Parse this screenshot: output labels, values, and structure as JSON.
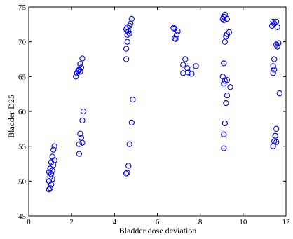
{
  "chart_data": {
    "type": "scatter",
    "xlabel": "Bladder dose deviation",
    "ylabel": "Bladder D25",
    "xlim": [
      0,
      12
    ],
    "ylim": [
      45,
      75
    ],
    "xticks": [
      0,
      2,
      4,
      6,
      8,
      10,
      12
    ],
    "yticks": [
      45,
      50,
      55,
      60,
      65,
      70,
      75
    ],
    "x_tick_labels": [
      "0",
      "2",
      "4",
      "6",
      "8",
      "10",
      "12"
    ],
    "y_tick_labels": [
      "45",
      "50",
      "55",
      "60",
      "65",
      "70",
      "75"
    ],
    "grid": false,
    "legend": "none",
    "marker": "circle-open",
    "color": "#0000ff",
    "series": [
      {
        "points": [
          {
            "x": 1.2,
            "y": 55.0
          },
          {
            "x": 1.15,
            "y": 54.5
          },
          {
            "x": 1.1,
            "y": 53.5
          },
          {
            "x": 1.2,
            "y": 53.0
          },
          {
            "x": 1.05,
            "y": 52.7
          },
          {
            "x": 1.15,
            "y": 52.3
          },
          {
            "x": 1.0,
            "y": 51.8
          },
          {
            "x": 1.1,
            "y": 51.5
          },
          {
            "x": 0.95,
            "y": 51.3
          },
          {
            "x": 1.05,
            "y": 51.0
          },
          {
            "x": 1.0,
            "y": 50.6
          },
          {
            "x": 1.1,
            "y": 50.3
          },
          {
            "x": 0.95,
            "y": 50.0
          },
          {
            "x": 1.05,
            "y": 49.5
          },
          {
            "x": 1.0,
            "y": 49.0
          },
          {
            "x": 0.95,
            "y": 48.8
          },
          {
            "x": 2.5,
            "y": 67.6
          },
          {
            "x": 2.4,
            "y": 66.8
          },
          {
            "x": 2.45,
            "y": 66.3
          },
          {
            "x": 2.35,
            "y": 66.0
          },
          {
            "x": 2.3,
            "y": 65.8
          },
          {
            "x": 2.25,
            "y": 65.5
          },
          {
            "x": 2.4,
            "y": 65.7
          },
          {
            "x": 2.35,
            "y": 65.9
          },
          {
            "x": 2.2,
            "y": 65.0
          },
          {
            "x": 2.55,
            "y": 60.0
          },
          {
            "x": 2.5,
            "y": 58.7
          },
          {
            "x": 2.4,
            "y": 56.8
          },
          {
            "x": 2.45,
            "y": 56.2
          },
          {
            "x": 2.5,
            "y": 55.5
          },
          {
            "x": 2.35,
            "y": 55.3
          },
          {
            "x": 2.35,
            "y": 53.9
          },
          {
            "x": 4.8,
            "y": 73.3
          },
          {
            "x": 4.75,
            "y": 72.6
          },
          {
            "x": 4.7,
            "y": 72.3
          },
          {
            "x": 4.6,
            "y": 72.1
          },
          {
            "x": 4.55,
            "y": 71.8
          },
          {
            "x": 4.65,
            "y": 71.5
          },
          {
            "x": 4.7,
            "y": 71.2
          },
          {
            "x": 4.6,
            "y": 71.0
          },
          {
            "x": 4.6,
            "y": 70.0
          },
          {
            "x": 4.55,
            "y": 69.0
          },
          {
            "x": 4.55,
            "y": 67.5
          },
          {
            "x": 4.85,
            "y": 61.7
          },
          {
            "x": 4.8,
            "y": 58.4
          },
          {
            "x": 4.7,
            "y": 55.3
          },
          {
            "x": 4.65,
            "y": 52.2
          },
          {
            "x": 4.6,
            "y": 51.2
          },
          {
            "x": 4.55,
            "y": 51.1
          },
          {
            "x": 6.75,
            "y": 72.0
          },
          {
            "x": 6.8,
            "y": 71.9
          },
          {
            "x": 6.95,
            "y": 71.5
          },
          {
            "x": 6.9,
            "y": 71.0
          },
          {
            "x": 6.8,
            "y": 70.5
          },
          {
            "x": 6.85,
            "y": 70.4
          },
          {
            "x": 7.3,
            "y": 67.5
          },
          {
            "x": 7.2,
            "y": 66.7
          },
          {
            "x": 7.4,
            "y": 66.2
          },
          {
            "x": 7.8,
            "y": 66.5
          },
          {
            "x": 7.2,
            "y": 65.5
          },
          {
            "x": 7.45,
            "y": 65.6
          },
          {
            "x": 7.6,
            "y": 65.4
          },
          {
            "x": 9.15,
            "y": 73.9
          },
          {
            "x": 9.1,
            "y": 73.6
          },
          {
            "x": 9.05,
            "y": 73.3
          },
          {
            "x": 9.25,
            "y": 73.3
          },
          {
            "x": 9.1,
            "y": 73.1
          },
          {
            "x": 9.35,
            "y": 71.4
          },
          {
            "x": 9.25,
            "y": 71.1
          },
          {
            "x": 9.2,
            "y": 70.8
          },
          {
            "x": 9.15,
            "y": 70.0
          },
          {
            "x": 9.1,
            "y": 66.9
          },
          {
            "x": 9.05,
            "y": 65.0
          },
          {
            "x": 9.25,
            "y": 64.5
          },
          {
            "x": 9.15,
            "y": 64.4
          },
          {
            "x": 9.1,
            "y": 64.0
          },
          {
            "x": 9.4,
            "y": 63.5
          },
          {
            "x": 9.25,
            "y": 62.3
          },
          {
            "x": 9.2,
            "y": 61.2
          },
          {
            "x": 9.15,
            "y": 58.3
          },
          {
            "x": 9.1,
            "y": 56.7
          },
          {
            "x": 9.1,
            "y": 54.7
          },
          {
            "x": 11.4,
            "y": 72.9
          },
          {
            "x": 11.55,
            "y": 72.9
          },
          {
            "x": 11.45,
            "y": 72.6
          },
          {
            "x": 11.35,
            "y": 72.3
          },
          {
            "x": 11.6,
            "y": 72.1
          },
          {
            "x": 11.55,
            "y": 69.6
          },
          {
            "x": 11.65,
            "y": 69.8
          },
          {
            "x": 11.6,
            "y": 69.3
          },
          {
            "x": 11.45,
            "y": 67.5
          },
          {
            "x": 11.4,
            "y": 66.5
          },
          {
            "x": 11.45,
            "y": 66.0
          },
          {
            "x": 11.4,
            "y": 65.5
          },
          {
            "x": 11.7,
            "y": 62.6
          },
          {
            "x": 11.55,
            "y": 57.5
          },
          {
            "x": 11.5,
            "y": 56.5
          },
          {
            "x": 11.45,
            "y": 55.7
          },
          {
            "x": 11.55,
            "y": 55.6
          },
          {
            "x": 11.4,
            "y": 55.0
          }
        ]
      }
    ]
  }
}
